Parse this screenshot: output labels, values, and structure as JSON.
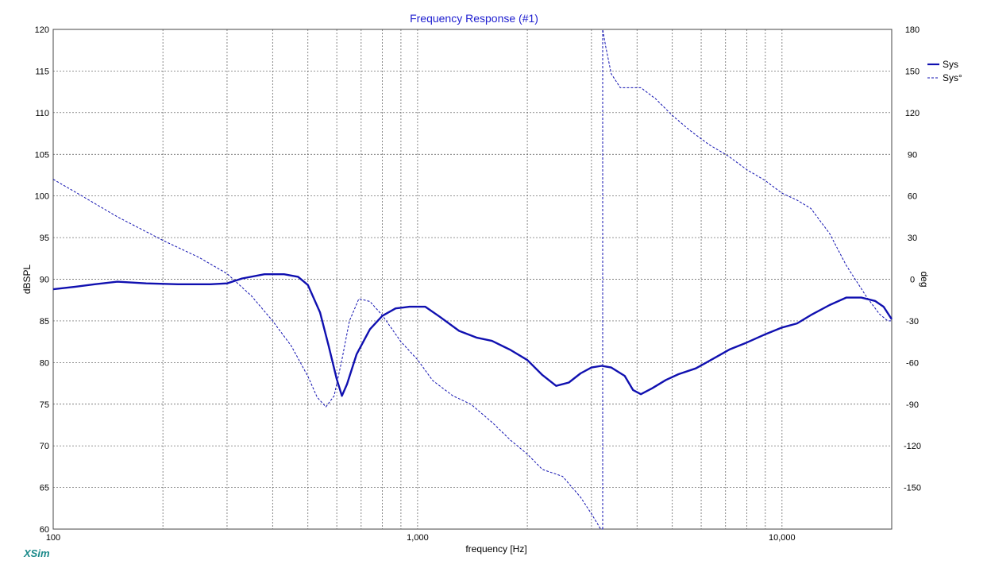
{
  "app": {
    "brand": "XSim"
  },
  "chart_data": {
    "type": "line",
    "title": "Frequency Response (#1)",
    "xlabel": "frequency [Hz]",
    "ylabel": "dBSPL",
    "y2label": "deg",
    "xscale": "log",
    "xlim": [
      100,
      20000
    ],
    "ylim": [
      60,
      120
    ],
    "y2lim": [
      -180,
      180
    ],
    "xticks": [
      100,
      1000,
      10000
    ],
    "xtick_labels": [
      "100",
      "1,000",
      "10,000"
    ],
    "yticks": [
      60,
      65,
      70,
      75,
      80,
      85,
      90,
      95,
      100,
      105,
      110,
      115,
      120
    ],
    "y2ticks": [
      -150,
      -120,
      -90,
      -60,
      -30,
      0,
      30,
      60,
      90,
      120,
      150,
      180
    ],
    "grid": true,
    "legend_position": "top-right",
    "colors": {
      "series": "#1010b0",
      "title": "#1f1fd0",
      "grid": "#555555",
      "brand": "#1a8a8a"
    },
    "series": [
      {
        "name": "Sys",
        "axis": "left",
        "style": "solid",
        "x": [
          100,
          115,
          130,
          150,
          180,
          220,
          270,
          300,
          330,
          380,
          430,
          470,
          500,
          540,
          570,
          600,
          620,
          640,
          680,
          740,
          800,
          870,
          950,
          1050,
          1150,
          1300,
          1450,
          1600,
          1800,
          2000,
          2200,
          2400,
          2600,
          2800,
          3000,
          3200,
          3400,
          3700,
          3900,
          4100,
          4400,
          4800,
          5200,
          5800,
          6500,
          7200,
          8000,
          9000,
          10000,
          11000,
          12000,
          13500,
          15000,
          16500,
          18000,
          19000,
          20000
        ],
        "values": [
          88.8,
          89.1,
          89.4,
          89.7,
          89.5,
          89.4,
          89.4,
          89.5,
          90.1,
          90.6,
          90.6,
          90.3,
          89.3,
          86.0,
          82.0,
          78.0,
          76.0,
          77.4,
          81.0,
          84.0,
          85.6,
          86.5,
          86.7,
          86.7,
          85.5,
          83.8,
          83.0,
          82.6,
          81.5,
          80.3,
          78.5,
          77.2,
          77.6,
          78.7,
          79.4,
          79.6,
          79.4,
          78.4,
          76.7,
          76.2,
          76.9,
          77.9,
          78.6,
          79.3,
          80.5,
          81.6,
          82.4,
          83.4,
          84.2,
          84.7,
          85.7,
          86.9,
          87.8,
          87.8,
          87.4,
          86.7,
          85.2
        ]
      },
      {
        "name": "Sys°",
        "axis": "right",
        "style": "dashed",
        "x": [
          100,
          120,
          150,
          200,
          250,
          300,
          350,
          400,
          450,
          500,
          530,
          560,
          590,
          620,
          650,
          690,
          740,
          800,
          900,
          1000,
          1100,
          1250,
          1400,
          1600,
          1800,
          2000,
          2200,
          2500,
          2800,
          3000,
          3180,
          3220,
          3280,
          3400,
          3600,
          3800,
          4100,
          4500,
          5000,
          5600,
          6300,
          7100,
          8000,
          9000,
          10000,
          11000,
          12000,
          13500,
          15000,
          17000,
          18500,
          19500,
          20000
        ],
        "values": [
          72,
          60,
          45,
          28,
          16,
          4,
          -12,
          -30,
          -48,
          -70,
          -85,
          -92,
          -84,
          -58,
          -30,
          -14,
          -16,
          -26,
          -45,
          -58,
          -73,
          -84,
          -90,
          -103,
          -116,
          -126,
          -137,
          -142,
          -157,
          -169,
          -180,
          180,
          168,
          148,
          138,
          138,
          138,
          130,
          118,
          107,
          97,
          89,
          79,
          71,
          62,
          57,
          51,
          33,
          10,
          -12,
          -25,
          -30,
          -30
        ]
      }
    ]
  }
}
